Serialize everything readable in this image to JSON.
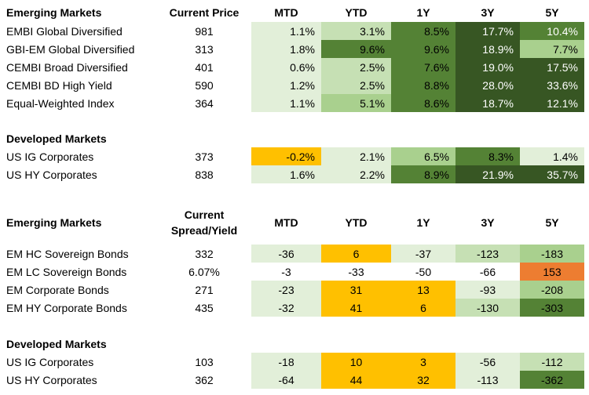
{
  "colors": {
    "light": "#e2efd9",
    "light2": "#c6e0b4",
    "mid": "#a9d08e",
    "green": "#548235",
    "dark": "#375623",
    "orange": "#ffc000",
    "red": "#ed7d31"
  },
  "table1": {
    "headers": [
      "Emerging Markets",
      "Current Price",
      "MTD",
      "YTD",
      "1Y",
      "3Y",
      "5Y"
    ],
    "rows": [
      {
        "name": "EMBI Global Diversified",
        "price": "981",
        "vals": [
          "1.1%",
          "3.1%",
          "8.5%",
          "17.7%",
          "10.4%"
        ],
        "bg": [
          "light",
          "light2",
          "green",
          "dark",
          "green"
        ],
        "fg": [
          "#000",
          "#000",
          "#000",
          "#fff",
          "#fff"
        ]
      },
      {
        "name": "GBI-EM Global Diversified",
        "price": "313",
        "vals": [
          "1.8%",
          "9.6%",
          "9.6%",
          "18.9%",
          "7.7%"
        ],
        "bg": [
          "light",
          "green",
          "green",
          "dark",
          "mid"
        ],
        "fg": [
          "#000",
          "#000",
          "#000",
          "#fff",
          "#000"
        ]
      },
      {
        "name": "CEMBI Broad Diversified",
        "price": "401",
        "vals": [
          "0.6%",
          "2.5%",
          "7.6%",
          "19.0%",
          "17.5%"
        ],
        "bg": [
          "light",
          "light2",
          "green",
          "dark",
          "dark"
        ],
        "fg": [
          "#000",
          "#000",
          "#000",
          "#fff",
          "#fff"
        ]
      },
      {
        "name": "CEMBI BD High Yield",
        "price": "590",
        "vals": [
          "1.2%",
          "2.5%",
          "8.8%",
          "28.0%",
          "33.6%"
        ],
        "bg": [
          "light",
          "light2",
          "green",
          "dark",
          "dark"
        ],
        "fg": [
          "#000",
          "#000",
          "#000",
          "#fff",
          "#fff"
        ]
      },
      {
        "name": "Equal-Weighted Index",
        "price": "364",
        "vals": [
          "1.1%",
          "5.1%",
          "8.6%",
          "18.7%",
          "12.1%"
        ],
        "bg": [
          "light",
          "mid",
          "green",
          "dark",
          "dark"
        ],
        "fg": [
          "#000",
          "#000",
          "#000",
          "#fff",
          "#fff"
        ]
      }
    ]
  },
  "table2": {
    "title": "Developed Markets",
    "rows": [
      {
        "name": "US IG Corporates",
        "price": "373",
        "vals": [
          "-0.2%",
          "2.1%",
          "6.5%",
          "8.3%",
          "1.4%"
        ],
        "bg": [
          "orange",
          "light",
          "mid",
          "green",
          "light"
        ],
        "fg": [
          "#000",
          "#000",
          "#000",
          "#000",
          "#000"
        ]
      },
      {
        "name": "US HY Corporates",
        "price": "838",
        "vals": [
          "1.6%",
          "2.2%",
          "8.9%",
          "21.9%",
          "35.7%"
        ],
        "bg": [
          "light",
          "light",
          "green",
          "dark",
          "dark"
        ],
        "fg": [
          "#000",
          "#000",
          "#000",
          "#fff",
          "#fff"
        ]
      }
    ]
  },
  "table3": {
    "headers": [
      "Emerging Markets",
      "Current",
      "Spread/Yield",
      "MTD",
      "YTD",
      "1Y",
      "3Y",
      "5Y"
    ],
    "rows": [
      {
        "name": "EM HC Sovereign Bonds",
        "price": "332",
        "vals": [
          "-36",
          "6",
          "-37",
          "-123",
          "-183"
        ],
        "bg": [
          "light",
          "orange",
          "light",
          "light2",
          "mid"
        ],
        "fg": [
          "#000",
          "#000",
          "#000",
          "#000",
          "#000"
        ]
      },
      {
        "name": "EM LC Sovereign Bonds",
        "price": "6.07%",
        "vals": [
          "-3",
          "-33",
          "-50",
          "-66",
          "153"
        ],
        "bg": [
          "",
          "",
          "",
          "",
          "red"
        ],
        "fg": [
          "#000",
          "#000",
          "#000",
          "#000",
          "#000"
        ]
      },
      {
        "name": "EM Corporate Bonds",
        "price": "271",
        "vals": [
          "-23",
          "31",
          "13",
          "-93",
          "-208"
        ],
        "bg": [
          "light",
          "orange",
          "orange",
          "light",
          "mid"
        ],
        "fg": [
          "#000",
          "#000",
          "#000",
          "#000",
          "#000"
        ]
      },
      {
        "name": "EM HY Corporate Bonds",
        "price": "435",
        "vals": [
          "-32",
          "41",
          "6",
          "-130",
          "-303"
        ],
        "bg": [
          "light",
          "orange",
          "orange",
          "light2",
          "green"
        ],
        "fg": [
          "#000",
          "#000",
          "#000",
          "#000",
          "#000"
        ]
      }
    ]
  },
  "table4": {
    "title": "Developed Markets",
    "rows": [
      {
        "name": "US IG Corporates",
        "price": "103",
        "vals": [
          "-18",
          "10",
          "3",
          "-56",
          "-112"
        ],
        "bg": [
          "light",
          "orange",
          "orange",
          "light",
          "light2"
        ],
        "fg": [
          "#000",
          "#000",
          "#000",
          "#000",
          "#000"
        ]
      },
      {
        "name": "US HY Corporates",
        "price": "362",
        "vals": [
          "-64",
          "44",
          "32",
          "-113",
          "-362"
        ],
        "bg": [
          "light",
          "orange",
          "orange",
          "light",
          "green"
        ],
        "fg": [
          "#000",
          "#000",
          "#000",
          "#000",
          "#000"
        ]
      }
    ]
  }
}
